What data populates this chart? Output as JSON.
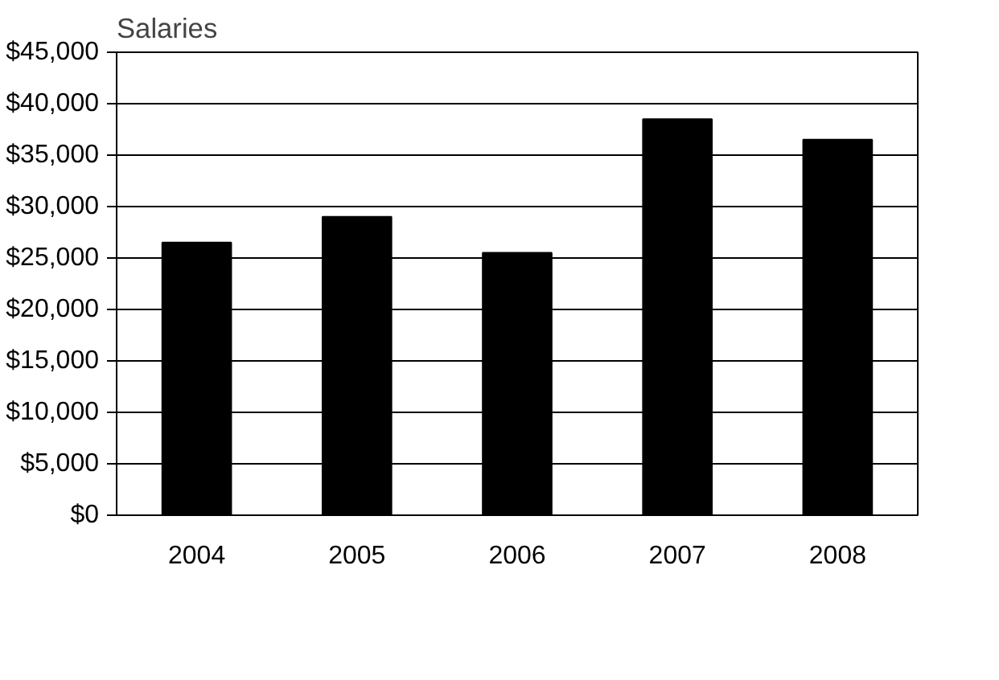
{
  "chart_data": {
    "type": "bar",
    "title": "Salaries",
    "categories": [
      "2004",
      "2005",
      "2006",
      "2007",
      "2008"
    ],
    "values": [
      26500,
      29000,
      25500,
      38500,
      36500
    ],
    "color": "#000000",
    "ylim": [
      0,
      45000
    ],
    "yticks": [
      {
        "value": 0,
        "label": "$0"
      },
      {
        "value": 5000,
        "label": "$5,000"
      },
      {
        "value": 10000,
        "label": "$10,000"
      },
      {
        "value": 15000,
        "label": "$15,000"
      },
      {
        "value": 20000,
        "label": "$20,000"
      },
      {
        "value": 25000,
        "label": "$25,000"
      },
      {
        "value": 30000,
        "label": "$30,000"
      },
      {
        "value": 35000,
        "label": "$35,000"
      },
      {
        "value": 40000,
        "label": "$40,000"
      },
      {
        "value": 45000,
        "label": "$45,000"
      }
    ],
    "grid": "y"
  }
}
